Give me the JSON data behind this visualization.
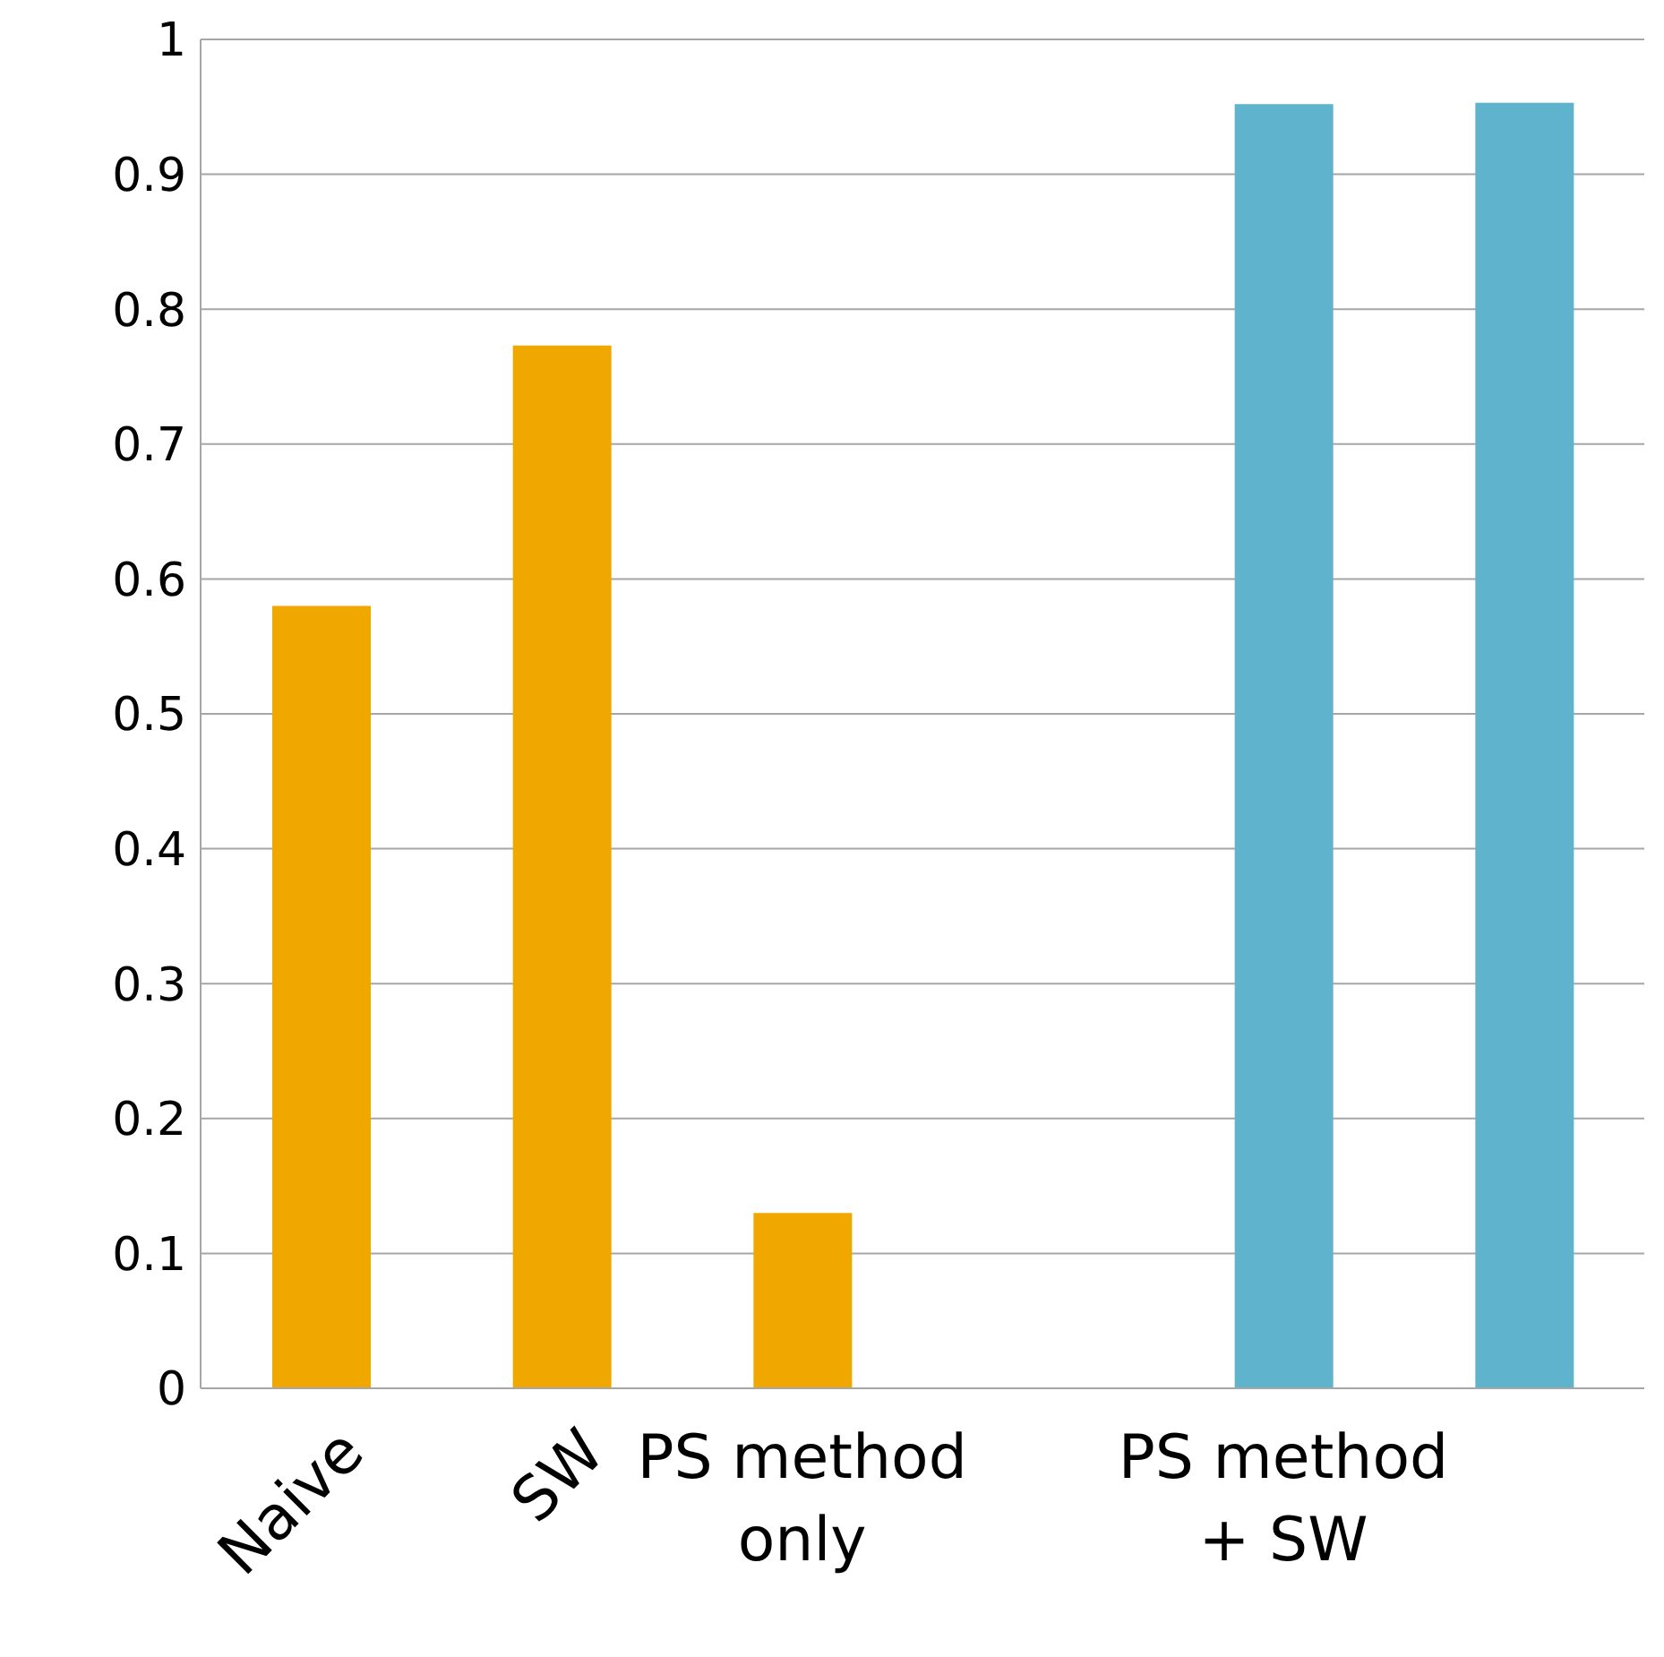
{
  "chart_data": {
    "type": "bar",
    "categories": [
      "Naive",
      "SW",
      "PS method only",
      null,
      "PS method + SW",
      null
    ],
    "values": [
      0.58,
      0.773,
      0.13,
      null,
      0.952,
      0.953
    ],
    "colors": [
      "#f0a800",
      "#f0a800",
      "#f0a800",
      "#f0a800",
      "#5fb3cc",
      "#5fb3cc"
    ],
    "ylim": [
      0,
      1
    ],
    "yticks": [
      0,
      0.1,
      0.2,
      0.3,
      0.4,
      0.5,
      0.6,
      0.7,
      0.8,
      0.9,
      1
    ],
    "grid": "y",
    "legend": false
  }
}
